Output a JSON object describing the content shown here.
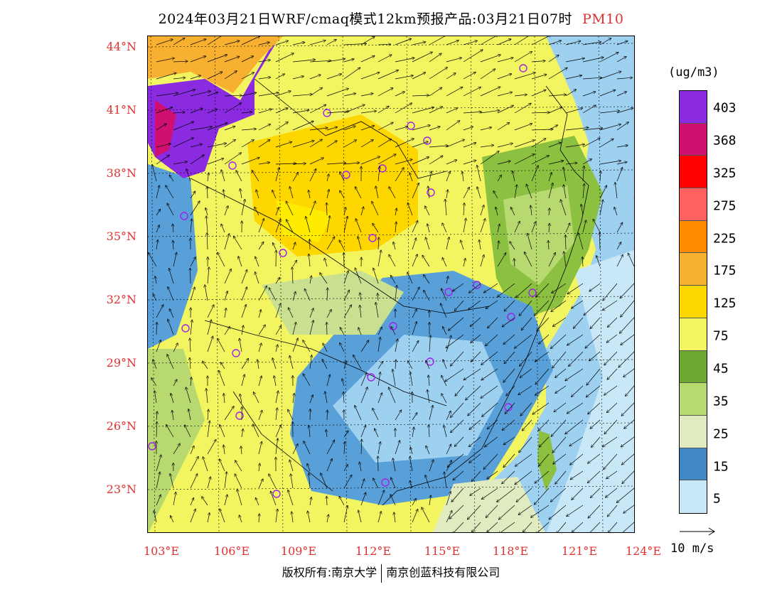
{
  "title": {
    "text": "2024年03月21日WRF/cmaq模式12km预报产品:03月21日07时",
    "pollutant": "PM10"
  },
  "lat_labels": [
    "44°N",
    "41°N",
    "38°N",
    "35°N",
    "32°N",
    "29°N",
    "26°N",
    "23°N"
  ],
  "lon_labels": [
    "103°E",
    "106°E",
    "109°E",
    "112°E",
    "115°E",
    "118°E",
    "121°E",
    "124°E"
  ],
  "colorbar": {
    "unit": "(ug/m3)",
    "labels": [
      "403",
      "368",
      "325",
      "275",
      "225",
      "175",
      "125",
      "75",
      "45",
      "35",
      "25",
      "15",
      "5"
    ],
    "colors": [
      "#8a2be2",
      "#b03060",
      "#d01070",
      "#ff0000",
      "#ff3060",
      "#ff6060",
      "#f05030",
      "#ff8c00",
      "#f8b030",
      "#ffd700",
      "#ffeb00",
      "#f0e060",
      "#f3f560",
      "#6aa830",
      "#8cc040",
      "#b8d870",
      "#c8e090",
      "#e0ecc0",
      "#3f88c5",
      "#5aa0d8",
      "#9ed0f0",
      "#c8e8f8",
      "#ffffff"
    ]
  },
  "wind_reference": {
    "label": "10 m/s"
  },
  "copyright": {
    "left": "版权所有:南京大学",
    "right": "南京创蓝科技有限公司"
  },
  "map_regions": {
    "purple_band": "#8a2be2",
    "high_band": "#ffd700",
    "mid_band": "#f3f560",
    "green_band": "#8cc040",
    "blue_band": "#5aa0d8",
    "light_blue_band": "#c8e8f8",
    "sea": "#9ed0f0"
  }
}
